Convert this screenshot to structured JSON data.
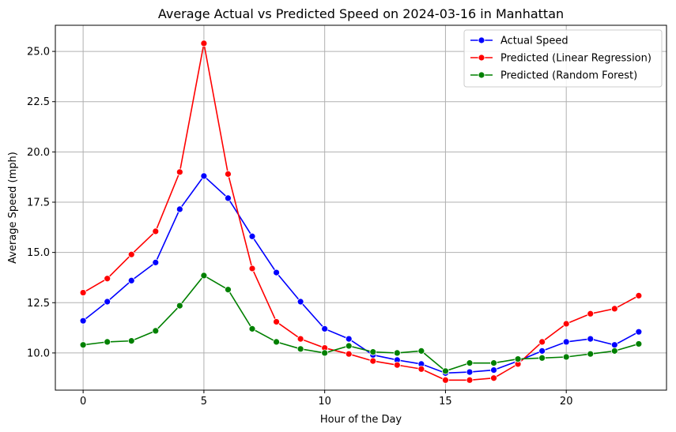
{
  "chart_data": {
    "type": "line",
    "title": "Average Actual vs Predicted Speed on 2024-03-16 in Manhattan",
    "xlabel": "Hour of the Day",
    "ylabel": "Average Speed (mph)",
    "xlim": [
      -1.15,
      24.15
    ],
    "ylim": [
      8.15,
      26.3
    ],
    "xticks": [
      0,
      5,
      10,
      15,
      20
    ],
    "yticks": [
      10.0,
      12.5,
      15.0,
      17.5,
      20.0,
      22.5,
      25.0
    ],
    "xtick_labels": [
      "0",
      "5",
      "10",
      "15",
      "20"
    ],
    "ytick_labels": [
      "10.0",
      "12.5",
      "15.0",
      "17.5",
      "20.0",
      "22.5",
      "25.0"
    ],
    "grid": true,
    "legend_position": "top-right",
    "x": [
      0,
      1,
      2,
      3,
      4,
      5,
      6,
      7,
      8,
      9,
      10,
      11,
      12,
      13,
      14,
      15,
      16,
      17,
      18,
      19,
      20,
      21,
      22,
      23
    ],
    "series": [
      {
        "name": "Actual Speed",
        "color": "#0000ff",
        "values": [
          11.6,
          12.55,
          13.6,
          14.5,
          17.15,
          18.8,
          17.7,
          15.8,
          14.0,
          12.55,
          11.2,
          10.7,
          9.9,
          9.65,
          9.45,
          9.0,
          9.05,
          9.15,
          9.6,
          10.1,
          10.55,
          10.7,
          10.4,
          11.05
        ]
      },
      {
        "name": "Predicted (Linear Regression)",
        "color": "#ff0000",
        "values": [
          13.0,
          13.7,
          14.9,
          16.05,
          19.0,
          25.4,
          18.9,
          14.2,
          11.55,
          10.7,
          10.25,
          9.95,
          9.6,
          9.4,
          9.2,
          8.65,
          8.65,
          8.75,
          9.45,
          10.55,
          11.45,
          11.95,
          12.2,
          12.85
        ]
      },
      {
        "name": "Predicted (Random Forest)",
        "color": "#008000",
        "values": [
          10.4,
          10.55,
          10.6,
          11.1,
          12.35,
          13.85,
          13.15,
          11.2,
          10.55,
          10.2,
          10.0,
          10.35,
          10.05,
          10.0,
          10.1,
          9.1,
          9.5,
          9.5,
          9.7,
          9.75,
          9.8,
          9.95,
          10.1,
          10.45
        ]
      }
    ]
  }
}
